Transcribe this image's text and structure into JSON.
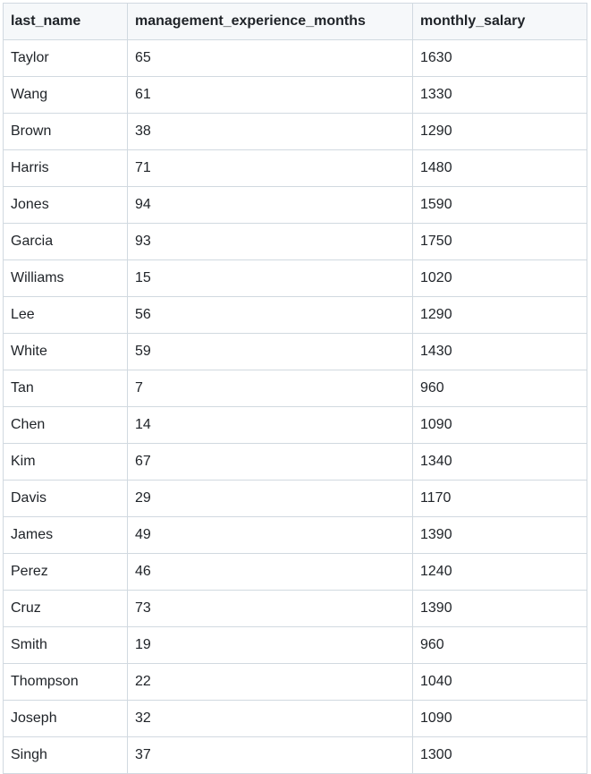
{
  "table": {
    "headers": [
      "last_name",
      "management_experience_months",
      "monthly_salary"
    ],
    "rows": [
      [
        "Taylor",
        "65",
        "1630"
      ],
      [
        "Wang",
        "61",
        "1330"
      ],
      [
        "Brown",
        "38",
        "1290"
      ],
      [
        "Harris",
        "71",
        "1480"
      ],
      [
        "Jones",
        "94",
        "1590"
      ],
      [
        "Garcia",
        "93",
        "1750"
      ],
      [
        "Williams",
        "15",
        "1020"
      ],
      [
        "Lee",
        "56",
        "1290"
      ],
      [
        "White",
        "59",
        "1430"
      ],
      [
        "Tan",
        "7",
        "960"
      ],
      [
        "Chen",
        "14",
        "1090"
      ],
      [
        "Kim",
        "67",
        "1340"
      ],
      [
        "Davis",
        "29",
        "1170"
      ],
      [
        "James",
        "49",
        "1390"
      ],
      [
        "Perez",
        "46",
        "1240"
      ],
      [
        "Cruz",
        "73",
        "1390"
      ],
      [
        "Smith",
        "19",
        "960"
      ],
      [
        "Thompson",
        "22",
        "1040"
      ],
      [
        "Joseph",
        "32",
        "1090"
      ],
      [
        "Singh",
        "37",
        "1300"
      ]
    ]
  }
}
